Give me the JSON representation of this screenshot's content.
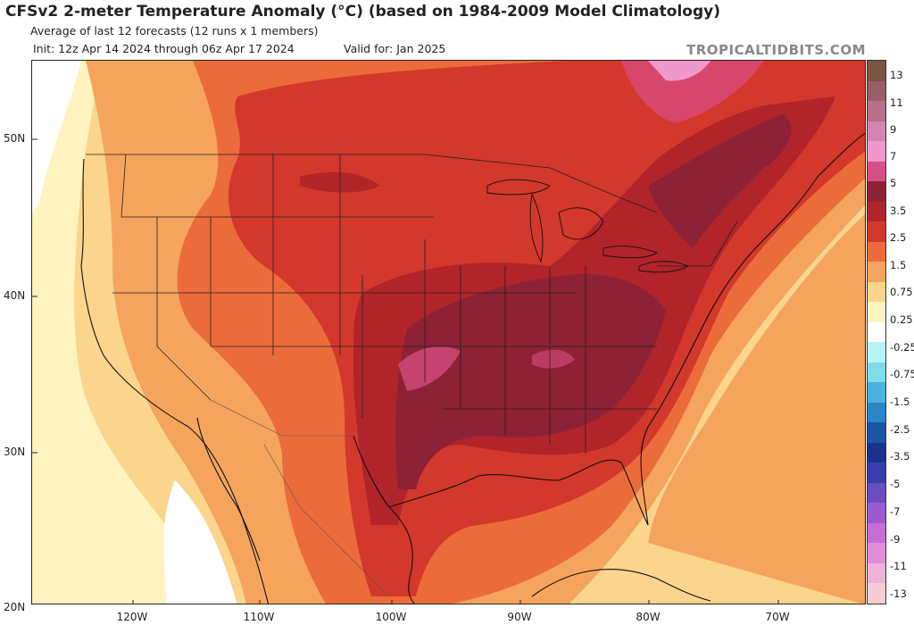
{
  "header": {
    "title": "CFSv2 2-meter Temperature Anomaly (°C) (based on 1984-2009 Model Climatology)",
    "subtitle": "Average of last 12 forecasts (12 runs x 1 members)",
    "init": "Init: 12z Apr 14 2024 through 06z Apr 17 2024",
    "valid": "Valid for: Jan 2025",
    "brand": "TROPICALTIDBITS.COM"
  },
  "axes": {
    "lat_labels": [
      "50N",
      "40N",
      "30N",
      "20N"
    ],
    "lon_labels": [
      "120W",
      "110W",
      "100W",
      "90W",
      "80W",
      "70W"
    ]
  },
  "colorbar": {
    "labels": [
      "13",
      "11",
      "9",
      "7",
      "5",
      "3.5",
      "2.5",
      "1.5",
      "0.75",
      "0.25",
      "-0.25",
      "-0.75",
      "-1.5",
      "-2.5",
      "-3.5",
      "-5",
      "-7",
      "-9",
      "-11",
      "-13"
    ],
    "colors": [
      "#7b5544",
      "#9a5e66",
      "#b6708a",
      "#d384b0",
      "#ef99cc",
      "#d84e86",
      "#8d2236",
      "#b1242a",
      "#d3382c",
      "#ec6b3b",
      "#f5a45e",
      "#fbd58d",
      "#fff3c0",
      "#ffffff",
      "#b6f3f5",
      "#7fdbeb",
      "#48b3dc",
      "#2b86c7",
      "#1c55a6",
      "#17348a",
      "#3a3dae",
      "#6a4cc4",
      "#9c5ad0",
      "#c56ed6",
      "#e08ed8",
      "#f0b2d6",
      "#f6cdd4"
    ]
  },
  "colors": {
    "anom_0_25": "#fff3c0",
    "anom_0_75": "#fbd58d",
    "anom_1_5": "#f5a45e",
    "anom_2_5": "#ec6b3b",
    "anom_3_5": "#d3382c",
    "anom_5": "#b1242a",
    "anom_7": "#8d2236",
    "anom_pink": "#d84e86"
  }
}
